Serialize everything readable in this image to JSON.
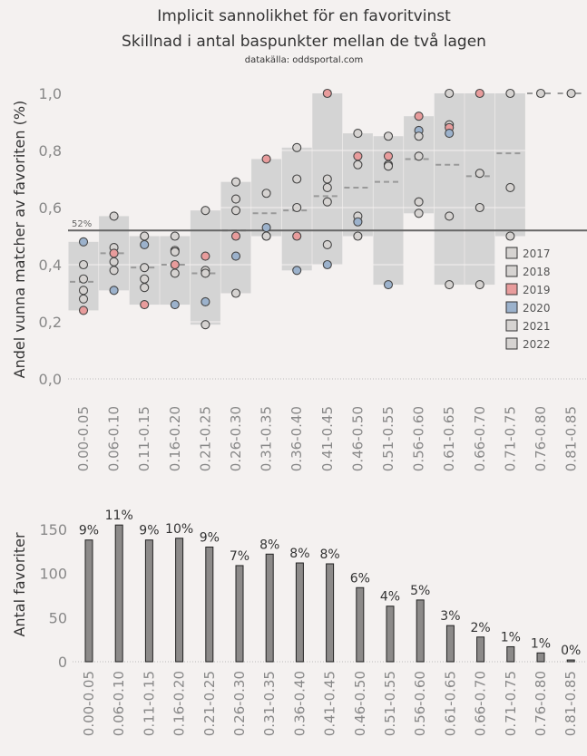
{
  "title_line1": "Implicit sannolikhet för en favoritvinst",
  "title_line2": "Skillnad i antal baspunkter mellan de två lagen",
  "source": "datakälla: oddsportal.com",
  "reference_label": "52%",
  "legend": [
    {
      "year": "2017",
      "color": "#d6d3d1"
    },
    {
      "year": "2018",
      "color": "#d6d3d1"
    },
    {
      "year": "2019",
      "color": "#e89c9c"
    },
    {
      "year": "2020",
      "color": "#9cb2cc"
    },
    {
      "year": "2021",
      "color": "#d6d3d1"
    },
    {
      "year": "2022",
      "color": "#d6d3d1"
    }
  ],
  "chart_data": [
    {
      "type": "scatter",
      "ylabel": "Andel vunna matcher av favoriten (%)",
      "ylim": [
        0,
        1.0
      ],
      "yticks": [
        "0,0",
        "0,2",
        "0,4",
        "0,6",
        "0,8",
        "1,0"
      ],
      "reference_line": 0.52,
      "categories": [
        "0.00-0.05",
        "0.06-0.10",
        "0.11-0.15",
        "0.16-0.20",
        "0.21-0.25",
        "0.26-0.30",
        "0.31-0.35",
        "0.36-0.40",
        "0.41-0.45",
        "0.46-0.50",
        "0.51-0.55",
        "0.56-0.60",
        "0.61-0.65",
        "0.66-0.70",
        "0.71-0.75",
        "0.76-0.80",
        "0.81-0.85"
      ],
      "means": [
        0.34,
        0.44,
        0.39,
        0.4,
        0.37,
        0.52,
        0.58,
        0.59,
        0.64,
        0.67,
        0.69,
        0.77,
        0.75,
        0.71,
        0.79,
        1.0,
        1.0
      ],
      "points": [
        [
          [
            0.48,
            "2020"
          ],
          [
            0.4,
            "2017"
          ],
          [
            0.35,
            "2018"
          ],
          [
            0.31,
            "2021"
          ],
          [
            0.28,
            "2022"
          ],
          [
            0.24,
            "2019"
          ]
        ],
        [
          [
            0.57,
            "2017"
          ],
          [
            0.46,
            "2018"
          ],
          [
            0.44,
            "2019"
          ],
          [
            0.41,
            "2021"
          ],
          [
            0.38,
            "2022"
          ],
          [
            0.31,
            "2020"
          ]
        ],
        [
          [
            0.5,
            "2017"
          ],
          [
            0.47,
            "2020"
          ],
          [
            0.39,
            "2018"
          ],
          [
            0.35,
            "2021"
          ],
          [
            0.32,
            "2022"
          ],
          [
            0.26,
            "2019"
          ]
        ],
        [
          [
            0.5,
            "2017"
          ],
          [
            0.45,
            "2018"
          ],
          [
            0.445,
            "2021"
          ],
          [
            0.4,
            "2019"
          ],
          [
            0.37,
            "2022"
          ],
          [
            0.26,
            "2020"
          ]
        ],
        [
          [
            0.59,
            "2017"
          ],
          [
            0.43,
            "2019"
          ],
          [
            0.38,
            "2018"
          ],
          [
            0.37,
            "2021"
          ],
          [
            0.27,
            "2020"
          ],
          [
            0.19,
            "2022"
          ]
        ],
        [
          [
            0.69,
            "2017"
          ],
          [
            0.63,
            "2018"
          ],
          [
            0.59,
            "2021"
          ],
          [
            0.5,
            "2019"
          ],
          [
            0.43,
            "2020"
          ],
          [
            0.3,
            "2022"
          ]
        ],
        [
          [
            0.77,
            "2019"
          ],
          [
            0.65,
            "2017"
          ],
          [
            0.53,
            "2020"
          ],
          [
            0.5,
            "2018"
          ],
          [
            0.5,
            "2021"
          ]
        ],
        [
          [
            0.81,
            "2017"
          ],
          [
            0.7,
            "2018"
          ],
          [
            0.6,
            "2021"
          ],
          [
            0.5,
            "2019"
          ],
          [
            0.38,
            "2020"
          ]
        ],
        [
          [
            1.0,
            "2019"
          ],
          [
            0.7,
            "2017"
          ],
          [
            0.67,
            "2018"
          ],
          [
            0.62,
            "2021"
          ],
          [
            0.47,
            "2022"
          ],
          [
            0.4,
            "2020"
          ]
        ],
        [
          [
            0.86,
            "2017"
          ],
          [
            0.78,
            "2019"
          ],
          [
            0.75,
            "2018"
          ],
          [
            0.57,
            "2021"
          ],
          [
            0.55,
            "2020"
          ],
          [
            0.5,
            "2022"
          ]
        ],
        [
          [
            0.85,
            "2017"
          ],
          [
            0.78,
            "2019"
          ],
          [
            0.75,
            "2018"
          ],
          [
            0.745,
            "2021"
          ],
          [
            0.33,
            "2020"
          ]
        ],
        [
          [
            0.92,
            "2019"
          ],
          [
            0.87,
            "2020"
          ],
          [
            0.85,
            "2017"
          ],
          [
            0.78,
            "2018"
          ],
          [
            0.62,
            "2021"
          ],
          [
            0.58,
            "2022"
          ]
        ],
        [
          [
            1.0,
            "2017"
          ],
          [
            0.89,
            "2018"
          ],
          [
            0.88,
            "2019"
          ],
          [
            0.86,
            "2020"
          ],
          [
            0.57,
            "2021"
          ],
          [
            0.33,
            "2022"
          ]
        ],
        [
          [
            1.0,
            "2019"
          ],
          [
            0.72,
            "2017"
          ],
          [
            0.6,
            "2018"
          ],
          [
            0.33,
            "2021"
          ]
        ],
        [
          [
            1.0,
            "2018"
          ],
          [
            0.67,
            "2017"
          ],
          [
            0.5,
            "2021"
          ]
        ],
        [
          [
            1.0,
            "2018"
          ]
        ],
        [
          [
            1.0,
            "2017"
          ]
        ]
      ]
    },
    {
      "type": "bar",
      "ylabel": "Antal favoriter",
      "ylim": [
        0,
        160
      ],
      "yticks": [
        "0",
        "50",
        "100",
        "150"
      ],
      "categories": [
        "0.00-0.05",
        "0.06-0.10",
        "0.11-0.15",
        "0.16-0.20",
        "0.21-0.25",
        "0.26-0.30",
        "0.31-0.35",
        "0.36-0.40",
        "0.41-0.45",
        "0.46-0.50",
        "0.51-0.55",
        "0.56-0.60",
        "0.61-0.65",
        "0.66-0.70",
        "0.71-0.75",
        "0.76-0.80",
        "0.81-0.85"
      ],
      "values": [
        138,
        155,
        138,
        140,
        130,
        109,
        122,
        112,
        111,
        84,
        63,
        70,
        41,
        28,
        17,
        10,
        2
      ],
      "labels": [
        "9%",
        "11%",
        "9%",
        "10%",
        "9%",
        "7%",
        "8%",
        "8%",
        "8%",
        "6%",
        "4%",
        "5%",
        "3%",
        "2%",
        "1%",
        "1%",
        "0%"
      ]
    }
  ]
}
